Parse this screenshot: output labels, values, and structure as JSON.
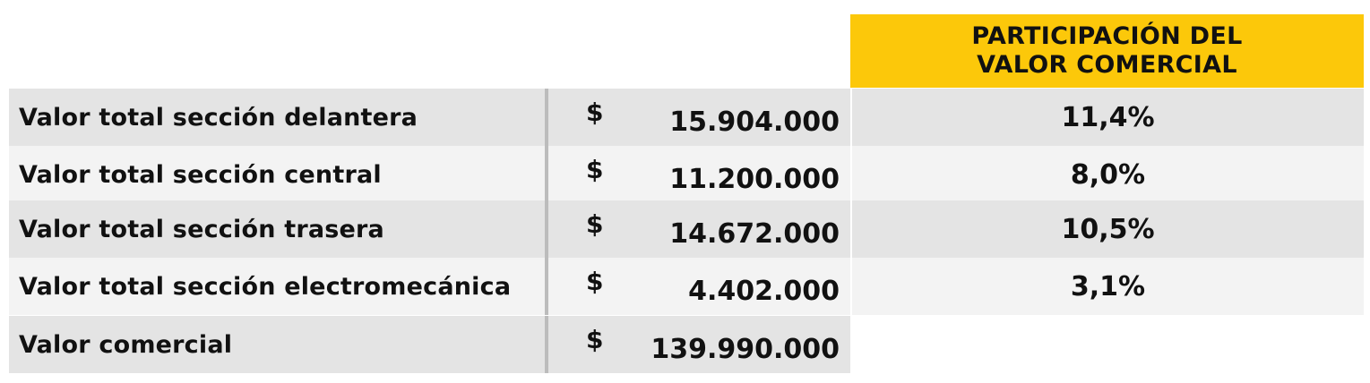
{
  "header": {
    "line1": "PARTICIPACIÓN DEL",
    "line2": "VALOR COMERCIAL"
  },
  "rows": [
    {
      "label": "Valor total sección delantera",
      "currency": "$",
      "amount": "15.904.000",
      "share": "11,4%"
    },
    {
      "label": "Valor total sección central",
      "currency": "$",
      "amount": "11.200.000",
      "share": "8,0%"
    },
    {
      "label": "Valor total sección trasera",
      "currency": "$",
      "amount": "14.672.000",
      "share": "10,5%"
    },
    {
      "label": "Valor total sección electromecánica",
      "currency": "$",
      "amount": "4.402.000",
      "share": "3,1%"
    },
    {
      "label": "Valor comercial",
      "currency": "$",
      "amount": "139.990.000"
    }
  ],
  "colors": {
    "header_bg": "#fcc80a",
    "row_dark": "#e4e4e4",
    "row_light": "#f3f3f3",
    "divider": "#bcbcbc"
  }
}
